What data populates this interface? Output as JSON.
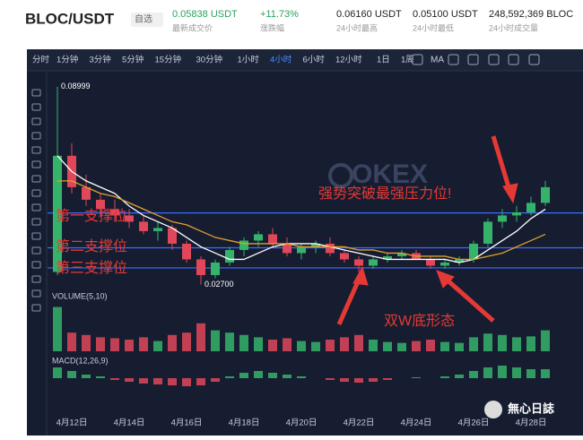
{
  "header": {
    "pair": "BLOC/USDT",
    "favorite": "自选",
    "price": "0.05838 USDT",
    "price_label": "最新成交价",
    "change": "+11.73%",
    "change_label": "涨跌幅",
    "high": "0.06160 USDT",
    "high_label": "24小时最高",
    "low": "0.05100 USDT",
    "low_label": "24小时最低",
    "volume": "248,592,369 BLOC",
    "volume_label": "24小时成交量"
  },
  "toolbar": {
    "intervals": [
      "分时",
      "1分钟",
      "3分钟",
      "5分钟",
      "15分钟",
      "30分钟",
      "1小时",
      "4小时",
      "6小时",
      "12小时",
      "1日",
      "1周"
    ],
    "active": 7,
    "indicator": "MA"
  },
  "chart_data": {
    "type": "candlestick",
    "watermark": "OKEX",
    "volume_title": "VOLUME(5,10)",
    "macd_title": "MACD(12,26,9)",
    "high_mark": "0.08999",
    "low_mark": "0.02700",
    "categories": [
      null,
      "4月12日",
      null,
      null,
      null,
      "4月14日",
      null,
      null,
      null,
      "4月16日",
      null,
      null,
      null,
      "4月18日",
      null,
      null,
      null,
      "4月20日",
      null,
      null,
      null,
      "4月22日",
      null,
      null,
      null,
      "4月24日",
      null,
      null,
      null,
      "4月26日",
      null,
      null,
      null,
      "4月28日",
      null
    ],
    "ohlc": [
      [
        0.031,
        0.08999,
        0.03,
        0.068
      ],
      [
        0.068,
        0.072,
        0.056,
        0.058
      ],
      [
        0.058,
        0.062,
        0.052,
        0.054
      ],
      [
        0.054,
        0.056,
        0.049,
        0.051
      ],
      [
        0.051,
        0.054,
        0.047,
        0.049
      ],
      [
        0.049,
        0.051,
        0.045,
        0.047
      ],
      [
        0.047,
        0.049,
        0.043,
        0.044
      ],
      [
        0.044,
        0.047,
        0.041,
        0.045
      ],
      [
        0.045,
        0.046,
        0.038,
        0.04
      ],
      [
        0.04,
        0.041,
        0.034,
        0.035
      ],
      [
        0.035,
        0.036,
        0.027,
        0.03
      ],
      [
        0.03,
        0.035,
        0.029,
        0.034
      ],
      [
        0.034,
        0.039,
        0.033,
        0.038
      ],
      [
        0.038,
        0.042,
        0.036,
        0.041
      ],
      [
        0.041,
        0.044,
        0.039,
        0.043
      ],
      [
        0.043,
        0.045,
        0.039,
        0.04
      ],
      [
        0.04,
        0.042,
        0.036,
        0.037
      ],
      [
        0.037,
        0.04,
        0.035,
        0.039
      ],
      [
        0.039,
        0.041,
        0.037,
        0.04
      ],
      [
        0.04,
        0.042,
        0.036,
        0.037
      ],
      [
        0.037,
        0.038,
        0.034,
        0.035
      ],
      [
        0.035,
        0.036,
        0.031,
        0.033
      ],
      [
        0.033,
        0.036,
        0.032,
        0.035
      ],
      [
        0.035,
        0.037,
        0.034,
        0.036
      ],
      [
        0.036,
        0.038,
        0.035,
        0.037
      ],
      [
        0.037,
        0.038,
        0.035,
        0.035
      ],
      [
        0.035,
        0.036,
        0.032,
        0.033
      ],
      [
        0.033,
        0.035,
        0.032,
        0.034
      ],
      [
        0.034,
        0.036,
        0.033,
        0.035
      ],
      [
        0.035,
        0.041,
        0.034,
        0.04
      ],
      [
        0.04,
        0.048,
        0.039,
        0.047
      ],
      [
        0.047,
        0.051,
        0.045,
        0.049
      ],
      [
        0.049,
        0.052,
        0.047,
        0.05
      ],
      [
        0.05,
        0.055,
        0.049,
        0.053
      ],
      [
        0.053,
        0.06,
        0.052,
        0.058
      ]
    ],
    "ma": [
      {
        "color": "#ffffff",
        "values": [
          0.068,
          0.063,
          0.06,
          0.058,
          0.056,
          0.052,
          0.049,
          0.047,
          0.045,
          0.042,
          0.039,
          0.037,
          0.035,
          0.035,
          0.037,
          0.039,
          0.04,
          0.04,
          0.04,
          0.039,
          0.038,
          0.037,
          0.036,
          0.035,
          0.035,
          0.035,
          0.035,
          0.035,
          0.034,
          0.035,
          0.038,
          0.041,
          0.044,
          0.048,
          0.051
        ]
      },
      {
        "color": "#e0a030",
        "values": [
          0.06,
          0.06,
          0.058,
          0.056,
          0.055,
          0.053,
          0.051,
          0.049,
          0.047,
          0.046,
          0.044,
          0.042,
          0.041,
          0.04,
          0.04,
          0.04,
          0.04,
          0.039,
          0.039,
          0.039,
          0.039,
          0.038,
          0.038,
          0.037,
          0.037,
          0.036,
          0.036,
          0.036,
          0.035,
          0.035,
          0.036,
          0.037,
          0.039,
          0.041,
          0.043
        ]
      }
    ],
    "support_lines": [
      0.0498,
      0.0387,
      0.0323
    ],
    "ylim": [
      0.024,
      0.0925
    ],
    "volume": [
      95,
      40,
      35,
      30,
      28,
      25,
      30,
      22,
      35,
      40,
      60,
      45,
      40,
      35,
      30,
      25,
      28,
      22,
      20,
      25,
      30,
      35,
      25,
      20,
      18,
      22,
      25,
      20,
      18,
      30,
      38,
      35,
      30,
      32,
      45
    ],
    "vlim": [
      0,
      100
    ],
    "macd": [
      0.6,
      0.4,
      0.2,
      0.1,
      -0.1,
      -0.2,
      -0.3,
      -0.35,
      -0.4,
      -0.45,
      -0.4,
      -0.2,
      0.1,
      0.3,
      0.4,
      0.3,
      0.2,
      0.1,
      0,
      -0.1,
      -0.2,
      -0.25,
      -0.2,
      -0.1,
      0,
      0.05,
      0,
      0.1,
      0.2,
      0.4,
      0.6,
      0.7,
      0.6,
      0.5,
      0.5
    ],
    "macd_lim": [
      -1,
      1
    ],
    "up_color": "#35b36b",
    "down_color": "#e0475a"
  },
  "annotations": {
    "support1": "第一支撑位",
    "support2": "第二支撑位",
    "support3": "第三支撑位",
    "breakout": "强势突破最强压力位!",
    "pattern": "双W底形态",
    "brand": "無心日誌"
  }
}
